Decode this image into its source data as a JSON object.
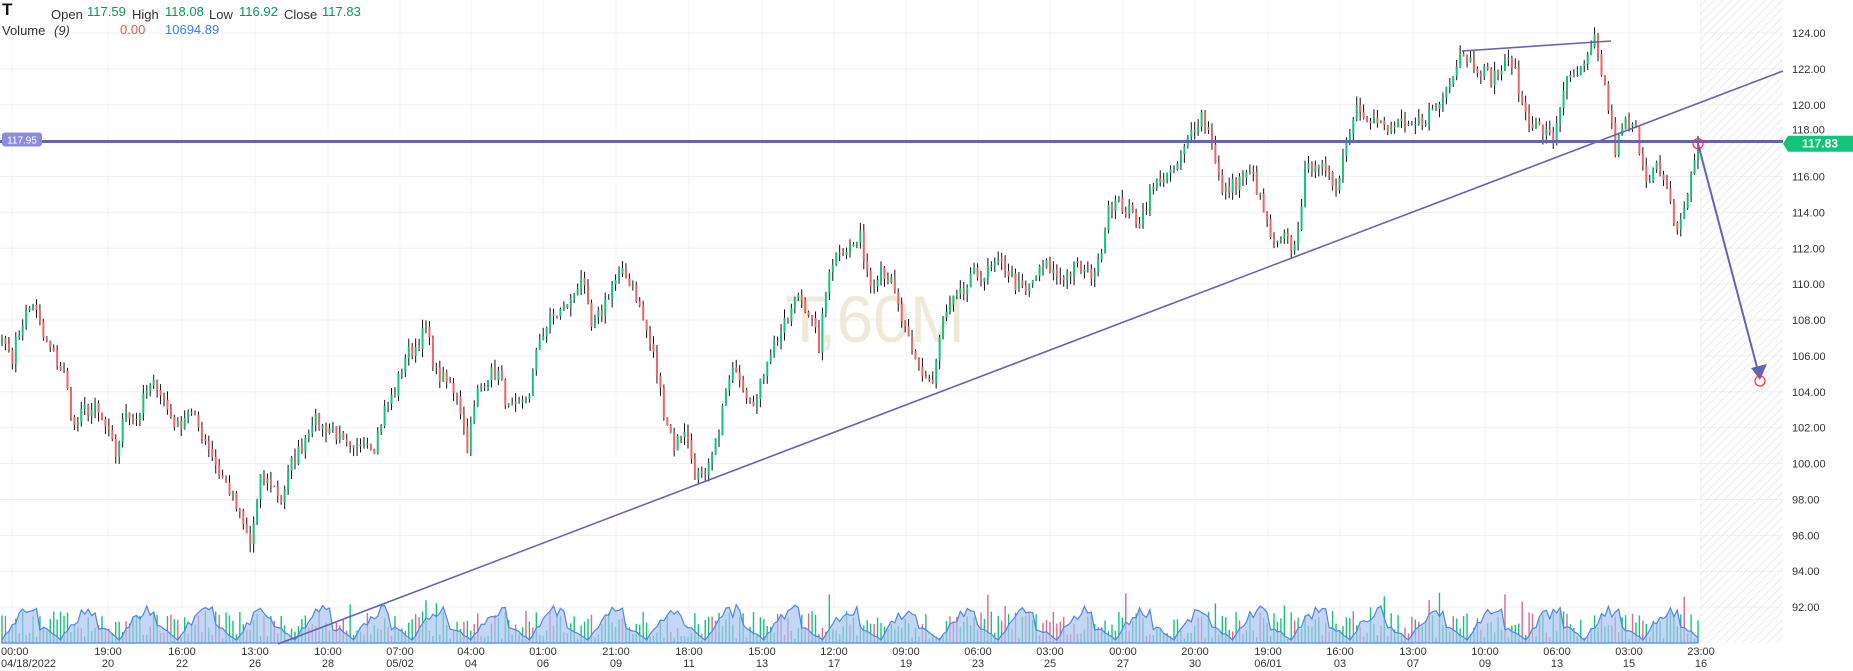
{
  "header": {
    "symbol": "T",
    "open_label": "Open",
    "open": "117.59",
    "high_label": "High",
    "high": "118.08",
    "low_label": "Low",
    "low": "116.92",
    "close_label": "Close",
    "close": "117.83",
    "volume_label": "Volume",
    "volume_period": "(9)",
    "volume_value1": "0.00",
    "volume_value2": "10694.89"
  },
  "watermark": "T,60M",
  "colors": {
    "up": "#12c47a",
    "down": "#f06467",
    "wick": "#111111",
    "drawing": "#6464b4",
    "last_price_bg": "#12c47a",
    "hline_label_bg": "#8c8cdc",
    "volume_area": "#a9c4f2",
    "volume_line": "#4f86e6"
  },
  "chart_data": {
    "type": "candlestick",
    "interval": "60M",
    "ylim": [
      90,
      125
    ],
    "y_ticks": [
      "124.00",
      "122.00",
      "120.00",
      "118.00",
      "116.00",
      "114.00",
      "112.00",
      "110.00",
      "108.00",
      "106.00",
      "104.00",
      "102.00",
      "100.00",
      "98.00",
      "96.00",
      "94.00",
      "92.00"
    ],
    "x_ticks": [
      {
        "time": "00:00",
        "date": "04/18/2022"
      },
      {
        "time": "19:00",
        "date": "20"
      },
      {
        "time": "16:00",
        "date": "22"
      },
      {
        "time": "13:00",
        "date": "26"
      },
      {
        "time": "10:00",
        "date": "28"
      },
      {
        "time": "07:00",
        "date": "05/02"
      },
      {
        "time": "04:00",
        "date": "04"
      },
      {
        "time": "01:00",
        "date": "06"
      },
      {
        "time": "21:00",
        "date": "09"
      },
      {
        "time": "18:00",
        "date": "11"
      },
      {
        "time": "15:00",
        "date": "13"
      },
      {
        "time": "12:00",
        "date": "17"
      },
      {
        "time": "09:00",
        "date": "19"
      },
      {
        "time": "06:00",
        "date": "23"
      },
      {
        "time": "03:00",
        "date": "25"
      },
      {
        "time": "00:00",
        "date": "27"
      },
      {
        "time": "20:00",
        "date": "30"
      },
      {
        "time": "19:00",
        "date": "06/01"
      },
      {
        "time": "16:00",
        "date": "03"
      },
      {
        "time": "13:00",
        "date": "07"
      },
      {
        "time": "10:00",
        "date": "09"
      },
      {
        "time": "06:00",
        "date": "13"
      },
      {
        "time": "03:00",
        "date": "15"
      },
      {
        "time": "23:00",
        "date": "16"
      }
    ],
    "approx_close_path": [
      107,
      106,
      108,
      109,
      107,
      106,
      105,
      102,
      103,
      103,
      102,
      100.5,
      103,
      102.5,
      104,
      104.5,
      103,
      102,
      103,
      102,
      101,
      99.5,
      98.5,
      97,
      95.5,
      99,
      99,
      98,
      100,
      101,
      102.5,
      102,
      102,
      101,
      100.5,
      101.5,
      101,
      103,
      104,
      106,
      106.5,
      107.5,
      105,
      104.5,
      104,
      101,
      104,
      105,
      105,
      103,
      103,
      104,
      107,
      108,
      108.5,
      109,
      110.5,
      107.5,
      108.5,
      110,
      110.5,
      110,
      108,
      106,
      103,
      101,
      102,
      99.5,
      99,
      101,
      104,
      105.5,
      104,
      103.5,
      106,
      107,
      108,
      109.5,
      108.5,
      106.5,
      111,
      112,
      112,
      112.5,
      110,
      111,
      110,
      108,
      106,
      105,
      104.5,
      108,
      109,
      109.5,
      110.5,
      110.5,
      111,
      111,
      110,
      109.5,
      110.5,
      111,
      110.5,
      110.5,
      111,
      110.5,
      111,
      114.5,
      114.5,
      114,
      113.5,
      115,
      116,
      116,
      117,
      118.5,
      119.5,
      118,
      115,
      115.5,
      116,
      116,
      114,
      112,
      112.5,
      112,
      116,
      117,
      116,
      115.5,
      118,
      120,
      119.5,
      119,
      118.5,
      119,
      118.5,
      119,
      119.5,
      120,
      121.5,
      123,
      122.5,
      122,
      121.5,
      122,
      122.5,
      120,
      119,
      118.5,
      118,
      121,
      121.5,
      122,
      123.5,
      121,
      117.5,
      119,
      118.5,
      116,
      116.5,
      115,
      113,
      115,
      117.83
    ],
    "horizontal_line": {
      "price": "117.95"
    },
    "last_price": {
      "price": "117.83"
    },
    "drawings": [
      {
        "type": "trendline",
        "from": {
          "date": "04/26",
          "price": 90.5
        },
        "to": {
          "date": "06/16+",
          "price": 122
        }
      },
      {
        "type": "trendline",
        "from": {
          "date": "06/08",
          "price": 123
        },
        "to": {
          "date": "06/14",
          "price": 123.6
        }
      },
      {
        "type": "arrow",
        "from": {
          "date": "06/16 23:00",
          "price": 117.83
        },
        "to": {
          "price": 104.6
        }
      }
    ],
    "volume": {
      "indicator": "Volume",
      "period": 9
    }
  }
}
